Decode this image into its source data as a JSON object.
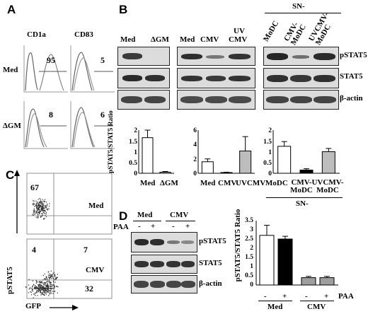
{
  "panels": {
    "A": "A",
    "B": "B",
    "C": "C",
    "D": "D"
  },
  "panelA": {
    "col_headers": [
      "CD1a",
      "CD83"
    ],
    "row_labels": [
      "Med",
      "ΔGM"
    ],
    "percents": [
      [
        "95",
        "5"
      ],
      [
        "8",
        "6"
      ]
    ]
  },
  "panelB": {
    "group1_labels": [
      "Med",
      "ΔGM"
    ],
    "group2_labels": [
      "Med",
      "CMV",
      "UV",
      "CMV"
    ],
    "sn_header": "SN-",
    "group3_labels": [
      "MoDC",
      "CMV-",
      "MoDC",
      "UVCMV-",
      "MoDC"
    ],
    "row_labels": [
      "pSTAT5",
      "STAT5",
      "β-actin"
    ],
    "chart_ylabel": "pSTAT5/STAT5 Ratio",
    "chart1": {
      "ticks": [
        "0",
        "0.5",
        "1",
        "1.5",
        "2"
      ]
    },
    "chart2": {
      "ticks": [
        "0",
        "2",
        "4",
        "6"
      ]
    },
    "chart3": {
      "ticks": [
        "0",
        "0.5",
        "1",
        "1.5",
        "2"
      ]
    },
    "x1": [
      "Med",
      "ΔGM"
    ],
    "x2": [
      "Med",
      "CMV",
      "UVCMV"
    ],
    "x3": [
      "MoDC",
      "CMV-",
      "MoDC",
      "UVCMV-",
      "MoDC"
    ],
    "sn_footer": "SN-"
  },
  "panelC": {
    "labels": [
      "Med",
      "CMV"
    ],
    "q_top": "67",
    "q_bottom": [
      "4",
      "7",
      "32"
    ],
    "yaxis": "pSTAT5",
    "xaxis": "GFP"
  },
  "panelD": {
    "groups": [
      "Med",
      "CMV"
    ],
    "paa": "PAA",
    "signs": [
      "-",
      "+",
      "-",
      "+"
    ],
    "row_labels": [
      "pSTAT5",
      "STAT5",
      "β-actin"
    ],
    "ylabel": "pSTAT5/STAT5 Ratio",
    "ticks": [
      "0",
      "0.5",
      "1",
      "1.5",
      "2",
      "2.5",
      "3",
      "3.5"
    ],
    "x_signs": [
      "-",
      "+",
      "-",
      "+"
    ],
    "x_paa": "PAA",
    "x_groups": [
      "Med",
      "CMV"
    ]
  },
  "chart_data": [
    {
      "type": "bar",
      "categories": [
        "Med",
        "ΔGM"
      ],
      "values": [
        1.65,
        0.05
      ],
      "ylim": [
        0,
        2
      ],
      "ylabel": "pSTAT5/STAT5 Ratio",
      "colors": [
        "#ffffff",
        "#ffffff"
      ]
    },
    {
      "type": "bar",
      "categories": [
        "Med",
        "CMV",
        "UVCMV"
      ],
      "values": [
        1.6,
        0.1,
        3.1
      ],
      "ylim": [
        0,
        6
      ],
      "colors": [
        "#ffffff",
        "#000000",
        "#bdbdbd"
      ]
    },
    {
      "type": "bar",
      "categories": [
        "MoDC",
        "CMV-MoDC",
        "UVCMV-MoDC"
      ],
      "values": [
        1.25,
        0.15,
        1.0
      ],
      "ylim": [
        0,
        2
      ],
      "colors": [
        "#ffffff",
        "#000000",
        "#bdbdbd"
      ]
    },
    {
      "type": "bar",
      "categories": [
        "Med -",
        "Med +",
        "CMV -",
        "CMV +"
      ],
      "values": [
        2.7,
        2.5,
        0.4,
        0.4
      ],
      "ylim": [
        0,
        3.5
      ],
      "ylabel": "pSTAT5/STAT5 Ratio",
      "colors": [
        "#ffffff",
        "#000000",
        "#9e9e9e",
        "#9e9e9e"
      ]
    }
  ]
}
